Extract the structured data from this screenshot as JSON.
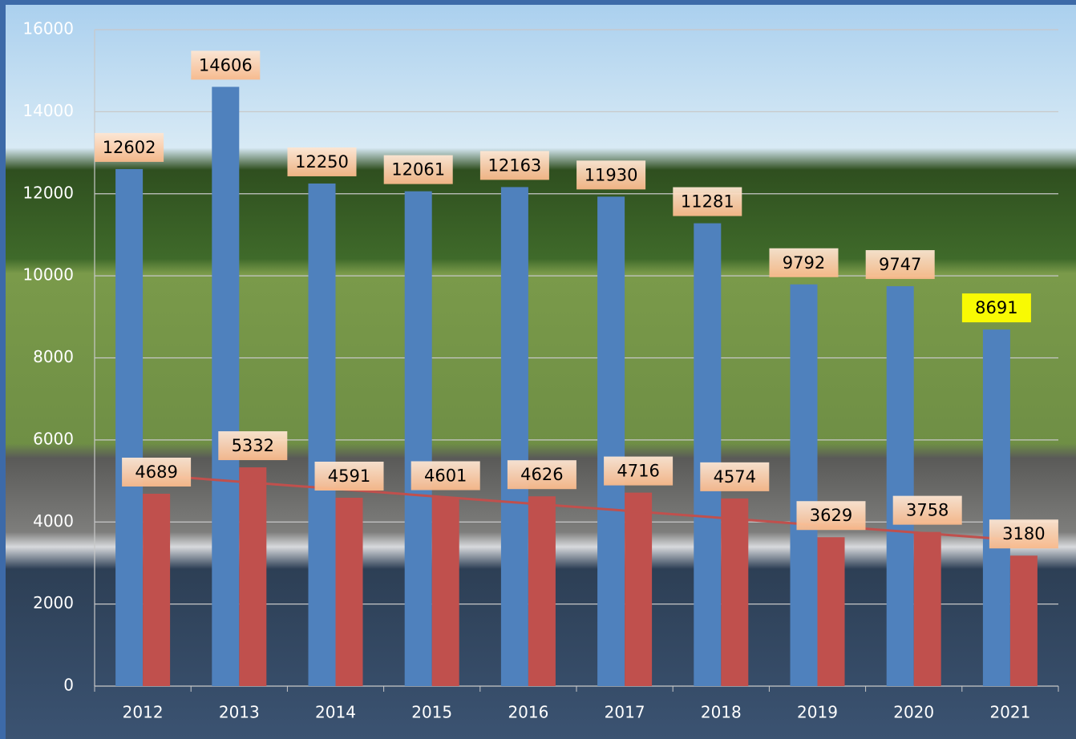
{
  "chart_data": {
    "type": "bar",
    "categories": [
      "2012",
      "2013",
      "2014",
      "2015",
      "2016",
      "2017",
      "2018",
      "2019",
      "2020",
      "2021"
    ],
    "series": [
      {
        "color": "#4f81bd",
        "values": [
          12602,
          14606,
          12250,
          12061,
          12163,
          11930,
          11281,
          9792,
          9747,
          8691
        ]
      },
      {
        "color": "#c0504d",
        "values": [
          4689,
          5332,
          4591,
          4601,
          4626,
          4716,
          4574,
          3629,
          3758,
          3180
        ]
      }
    ],
    "trend": {
      "series": 1,
      "color": "#c0504d",
      "values": [
        5160,
        3570
      ]
    },
    "value_label_highlight": {
      "series": 0,
      "index": 9,
      "color": "#ffff00"
    },
    "ylim": [
      0,
      16000
    ],
    "yticks": [
      0,
      2000,
      4000,
      6000,
      8000,
      10000,
      12000,
      14000,
      16000
    ],
    "grid": true
  }
}
